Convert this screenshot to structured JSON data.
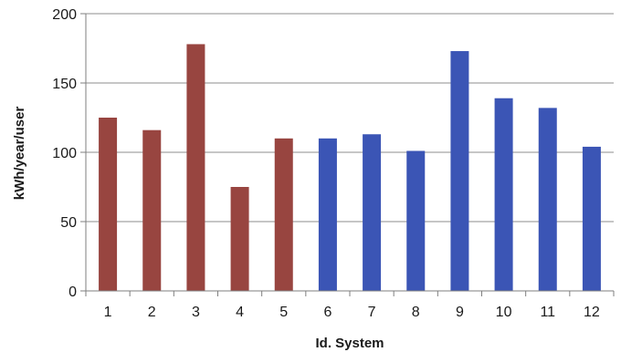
{
  "chart_data": {
    "type": "bar",
    "categories": [
      "1",
      "2",
      "3",
      "4",
      "5",
      "6",
      "7",
      "8",
      "9",
      "10",
      "11",
      "12"
    ],
    "values": [
      125,
      116,
      178,
      75,
      110,
      110,
      113,
      101,
      173,
      139,
      132,
      104
    ],
    "bar_colors": [
      "#984540",
      "#984540",
      "#984540",
      "#984540",
      "#984540",
      "#3b55b5",
      "#3b55b5",
      "#3b55b5",
      "#3b55b5",
      "#3b55b5",
      "#3b55b5",
      "#3b55b5"
    ],
    "xlabel": "Id. System",
    "ylabel": "kWh/year/user",
    "ylim": [
      0,
      200
    ],
    "yticks": [
      0,
      50,
      100,
      150,
      200
    ],
    "grid": "horizontal",
    "legend": "none"
  },
  "colors": {
    "group_a": "#984540",
    "group_b": "#3b55b5",
    "gridline": "#8c8c8c",
    "axis": "#7f7f7f"
  }
}
